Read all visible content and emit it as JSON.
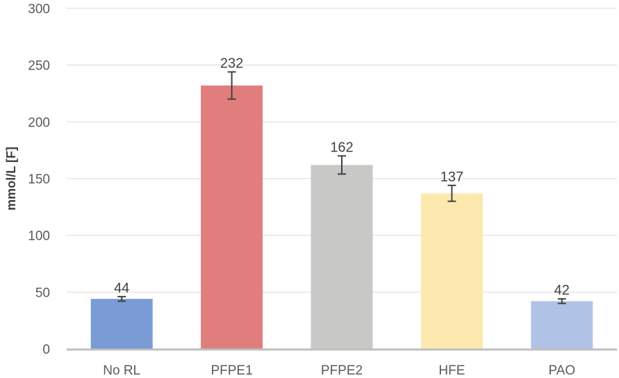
{
  "chart_data": {
    "type": "bar",
    "title": "",
    "xlabel": "",
    "ylabel": "mmol/L [F]",
    "ylim": [
      0,
      300
    ],
    "yticks": [
      0,
      50,
      100,
      150,
      200,
      250,
      300
    ],
    "categories": [
      "No RL",
      "PFPE1",
      "PFPE2",
      "HFE",
      "PAO"
    ],
    "values": [
      44,
      232,
      162,
      137,
      42
    ],
    "data_labels": [
      "44",
      "232",
      "162",
      "137",
      "42"
    ],
    "error": [
      2,
      12,
      8,
      7,
      2
    ],
    "colors": [
      "#7a9bd6",
      "#e07e7e",
      "#c8c8c6",
      "#fde9b0",
      "#b0c3e6"
    ],
    "grid": true,
    "legend": "none"
  }
}
